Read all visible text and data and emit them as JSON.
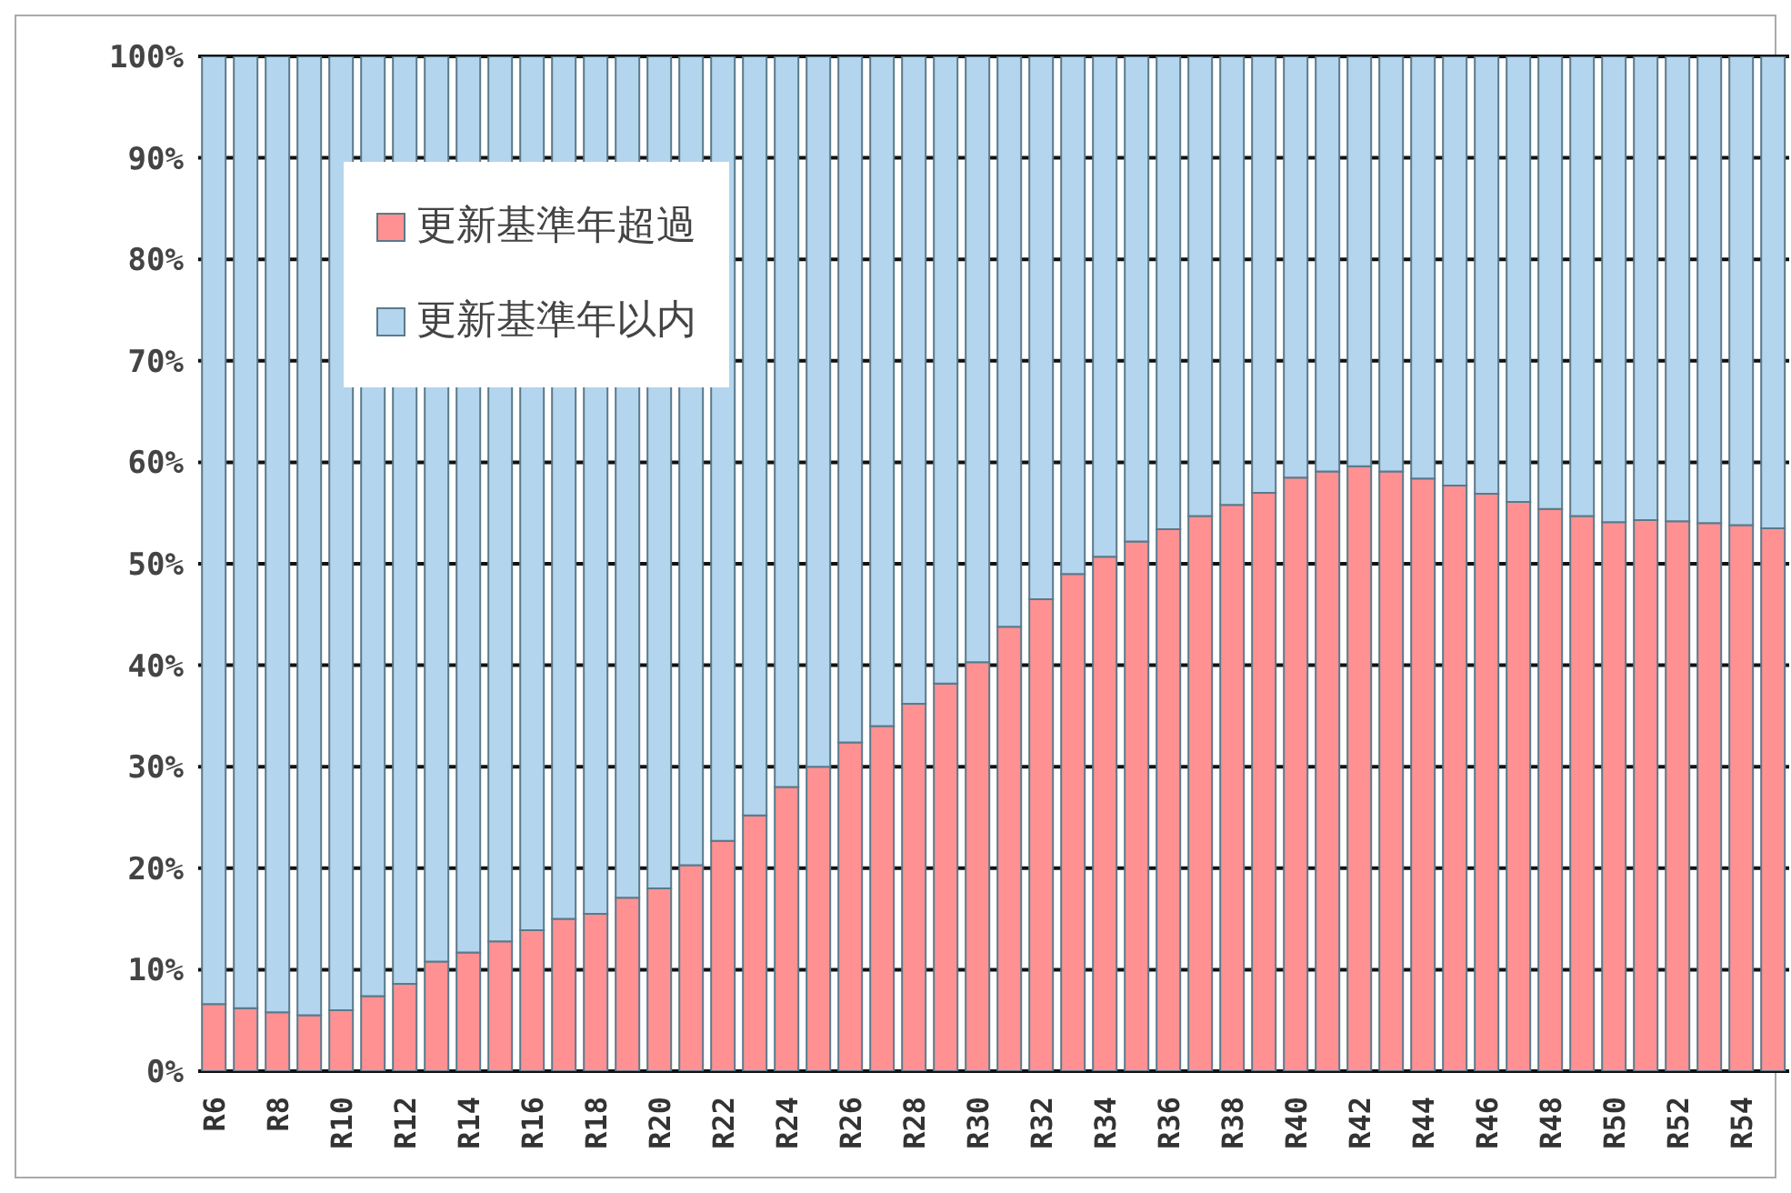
{
  "chart_data": {
    "type": "bar",
    "stacked": true,
    "categories": [
      "R6",
      null,
      "R8",
      null,
      "R10",
      null,
      "R12",
      null,
      "R14",
      null,
      "R16",
      null,
      "R18",
      null,
      "R20",
      null,
      "R22",
      null,
      "R24",
      null,
      "R26",
      null,
      "R28",
      null,
      "R30",
      null,
      "R32",
      null,
      "R34",
      null,
      "R36",
      null,
      "R38",
      null,
      "R40",
      null,
      "R42",
      null,
      "R44",
      null,
      "R46",
      null,
      "R48",
      null,
      "R50",
      null,
      "R52",
      null,
      "R54",
      null
    ],
    "series": [
      {
        "name": "更新基準年超過",
        "color": "#ff9193",
        "values": [
          6.6,
          6.2,
          5.8,
          5.5,
          6.0,
          7.4,
          8.6,
          10.8,
          11.7,
          12.8,
          13.9,
          15.0,
          15.5,
          17.1,
          18.0,
          20.3,
          22.7,
          25.2,
          28.0,
          30.0,
          32.4,
          34.0,
          36.2,
          38.2,
          40.3,
          43.8,
          46.5,
          49.0,
          50.7,
          52.2,
          53.4,
          54.7,
          55.8,
          57.0,
          58.5,
          59.1,
          59.6,
          59.1,
          58.4,
          57.7,
          56.9,
          56.1,
          55.4,
          54.7,
          54.1,
          54.3,
          54.2,
          54.0,
          53.8,
          53.5
        ]
      },
      {
        "name": "更新基準年以内",
        "color": "#b4d5ee",
        "values": [
          93.4,
          93.8,
          94.2,
          94.5,
          94.0,
          92.6,
          91.4,
          89.2,
          88.3,
          87.2,
          86.1,
          85.0,
          84.5,
          82.9,
          82.0,
          79.7,
          77.3,
          74.8,
          72.0,
          70.0,
          67.6,
          66.0,
          63.8,
          61.8,
          59.7,
          56.2,
          53.5,
          51.0,
          49.3,
          47.8,
          46.6,
          45.3,
          44.2,
          43.0,
          41.5,
          40.9,
          40.4,
          40.9,
          41.6,
          42.3,
          43.1,
          43.9,
          44.6,
          45.3,
          45.9,
          45.7,
          45.8,
          46.0,
          46.2,
          46.5
        ]
      }
    ],
    "ylim": [
      0,
      100
    ],
    "yticks": [
      {
        "value": 0,
        "label": "0%"
      },
      {
        "value": 10,
        "label": "10%"
      },
      {
        "value": 20,
        "label": "20%"
      },
      {
        "value": 30,
        "label": "30%"
      },
      {
        "value": 40,
        "label": "40%"
      },
      {
        "value": 50,
        "label": "50%"
      },
      {
        "value": 60,
        "label": "60%"
      },
      {
        "value": 70,
        "label": "70%"
      },
      {
        "value": 80,
        "label": "80%"
      },
      {
        "value": 90,
        "label": "90%"
      },
      {
        "value": 100,
        "label": "100%"
      }
    ],
    "grid": "y",
    "legend": "top left"
  }
}
